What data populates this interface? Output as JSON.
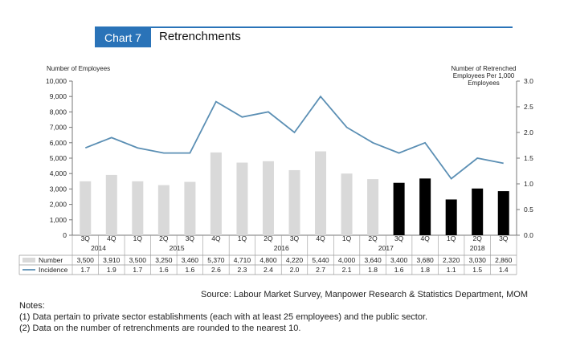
{
  "header": {
    "badge": "Chart 7",
    "title": "Retrenchments"
  },
  "colors": {
    "accent": "#2a73b8",
    "bar_2014_2017_3q": "#d9d9d9",
    "bar_later": "#000000",
    "line": "#5b8fb4"
  },
  "chart_data": {
    "type": "bar",
    "title": "Retrenchments",
    "ylabel_left": "Number of Employees",
    "ylabel_right": "Number of Retrenched Employees Per 1,000 Employees",
    "ylim_left": [
      0,
      10000
    ],
    "ylim_right": [
      0,
      3.0
    ],
    "left_ticks": [
      "10,000",
      "9,000",
      "8,000",
      "7,000",
      "6,000",
      "5,000",
      "4,000",
      "3,000",
      "2,000",
      "1,000",
      "0"
    ],
    "right_ticks": [
      "3.0",
      "2.5",
      "2.0",
      "1.5",
      "1.0",
      "0.5",
      "0.0"
    ],
    "quarters": [
      "3Q",
      "4Q",
      "1Q",
      "2Q",
      "3Q",
      "4Q",
      "1Q",
      "2Q",
      "3Q",
      "4Q",
      "1Q",
      "2Q",
      "3Q",
      "4Q",
      "1Q",
      "2Q",
      "3Q"
    ],
    "years": [
      {
        "label": "2014",
        "span": [
          0,
          1
        ]
      },
      {
        "label": "2015",
        "span": [
          2,
          5
        ]
      },
      {
        "label": "2016",
        "span": [
          6,
          9
        ]
      },
      {
        "label": "2017",
        "span": [
          10,
          13
        ]
      },
      {
        "label": "2018",
        "span": [
          14,
          16
        ]
      }
    ],
    "series": [
      {
        "name": "Number",
        "type": "bar",
        "axis": "left",
        "values": [
          3500,
          3910,
          3500,
          3250,
          3460,
          5370,
          4710,
          4800,
          4220,
          5440,
          4000,
          3640,
          3400,
          3680,
          2320,
          3030,
          2860
        ],
        "labels": [
          "3,500",
          "3,910",
          "3,500",
          "3,250",
          "3,460",
          "5,370",
          "4,710",
          "4,800",
          "4,220",
          "5,440",
          "4,000",
          "3,640",
          "3,400",
          "3,680",
          "2,320",
          "3,030",
          "2,860"
        ],
        "highlight_from_index": 12
      },
      {
        "name": "Incidence",
        "type": "line",
        "axis": "right",
        "values": [
          1.7,
          1.9,
          1.7,
          1.6,
          1.6,
          2.6,
          2.3,
          2.4,
          2.0,
          2.7,
          2.1,
          1.8,
          1.6,
          1.8,
          1.1,
          1.5,
          1.4
        ],
        "labels": [
          "1.7",
          "1.9",
          "1.7",
          "1.6",
          "1.6",
          "2.6",
          "2.3",
          "2.4",
          "2.0",
          "2.7",
          "2.1",
          "1.8",
          "1.6",
          "1.8",
          "1.1",
          "1.5",
          "1.4"
        ]
      }
    ],
    "grid": false,
    "legend": "data-table-below"
  },
  "source": "Source: Labour Market Survey, Manpower Research & Statistics Department, MOM",
  "notes": {
    "heading": "Notes:",
    "items": [
      "(1)  Data pertain to private sector establishments (each with at least 25 employees) and the public sector.",
      "(2)  Data on the number of retrenchments are rounded to the nearest 10."
    ]
  }
}
